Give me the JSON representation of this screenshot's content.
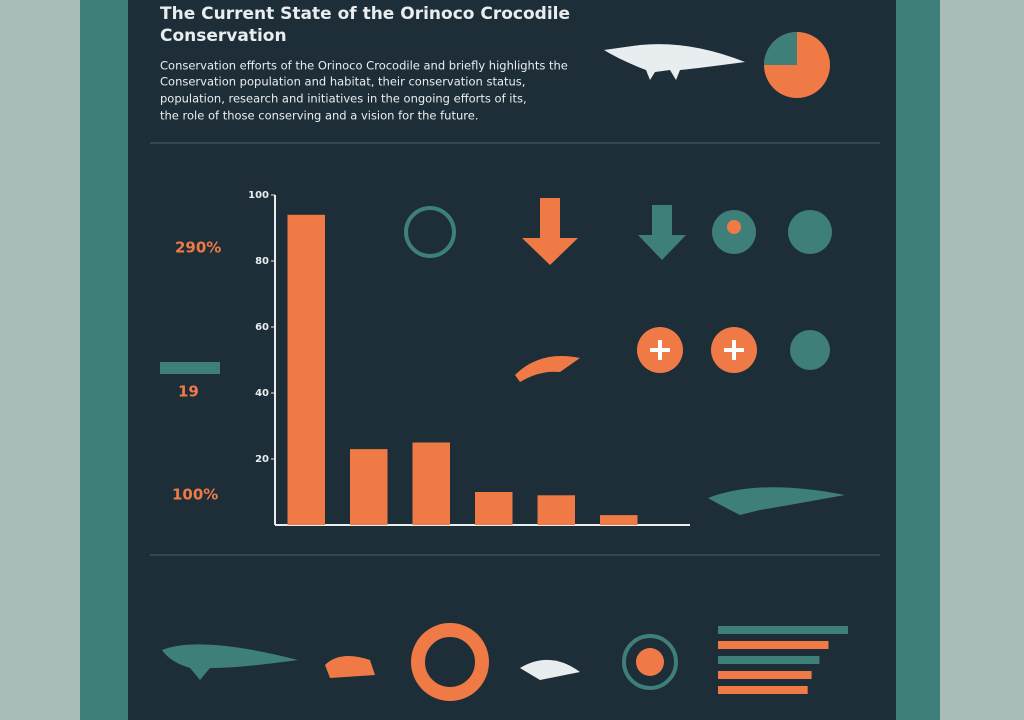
{
  "header": {
    "title": [
      "The Current State of the Orinoco Crocodile",
      "Conservation"
    ],
    "body": [
      "Conservation efforts of the Orinoco Crocodile and briefly highlights the",
      "Conservation population and habitat, their conservation status,",
      "population, research and initiatives in the ongoing efforts of its,",
      "the role of those conserving and a vision for the future."
    ]
  },
  "stats": [
    "290%",
    "19",
    "100%"
  ],
  "chart_data": [
    {
      "type": "bar",
      "categories": [
        null,
        null,
        null,
        null,
        null,
        null
      ],
      "values": [
        94,
        23,
        25,
        10,
        9,
        3
      ],
      "color": "#f07a45",
      "ylim": [
        0,
        100
      ],
      "yticks": [
        100,
        80,
        60,
        40,
        20
      ],
      "grid": false
    },
    {
      "type": "hbar",
      "values": [
        100,
        85,
        78,
        72,
        69
      ],
      "colors": [
        "#3e7f7a",
        "#f07a45",
        "#3e7f7a",
        "#f07a45",
        "#f07a45"
      ],
      "xlim": [
        0,
        100
      ]
    }
  ]
}
